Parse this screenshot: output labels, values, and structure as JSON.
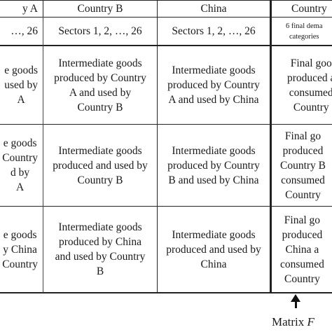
{
  "header": {
    "col0": "y A",
    "col1": "Country B",
    "col2": "China",
    "col3": "Country"
  },
  "subheader": {
    "col0": "…, 26",
    "col1": "Sectors 1, 2, …, 26",
    "col2": "Sectors 1, 2, …, 26",
    "col3": "6 final dema\ncategories"
  },
  "rows": [
    {
      "col0": "e goods\nused by\nA",
      "col1": "Intermediate goods\nproduced by Country\nA and used by\nCountry B",
      "col2": "Intermediate goods\nproduced by Country\nA and used by China",
      "col3": "Final goo\nproduced a\nconsumed\nCountry"
    },
    {
      "col0": "e goods\nCountry\nd by\nA",
      "col1": "Intermediate goods\nproduced and used by\nCountry B",
      "col2": "Intermediate goods\nproduced by Country\nB and used by China",
      "col3": "Final go\nproduced\nCountry B\nconsumed\nCountry"
    },
    {
      "col0": "e goods\ny China\nCountry",
      "col1": "Intermediate goods\nproduced by China\nand used by Country\nB",
      "col2": "Intermediate goods\nproduced and used by\nChina",
      "col3": "Final go\nproduced\nChina a\nconsumed\nCountry"
    }
  ],
  "matrix_label": {
    "prefix": "Matrix ",
    "var": "F"
  }
}
